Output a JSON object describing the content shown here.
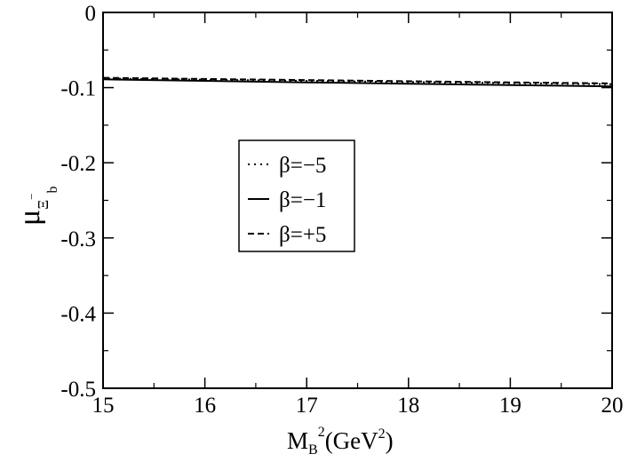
{
  "chart_data": {
    "type": "line",
    "xlim": [
      15,
      20
    ],
    "ylim": [
      -0.5,
      0
    ],
    "x_ticks": [
      15,
      16,
      17,
      18,
      19,
      20
    ],
    "y_ticks": [
      0,
      -0.1,
      -0.2,
      -0.3,
      -0.4,
      -0.5
    ],
    "x_tick_labels": [
      "15",
      "16",
      "17",
      "18",
      "19",
      "20"
    ],
    "y_tick_labels": [
      "0",
      "-0.1",
      "-0.2",
      "-0.3",
      "-0.4",
      "-0.5"
    ],
    "xlabel": {
      "main": "M",
      "sub": "B",
      "sup": "2",
      "rest": "(GeV",
      "sup2": "2",
      "close": ")"
    },
    "ylabel": {
      "main": "μ",
      "sub": "Ξ",
      "sub_sup": "−",
      "sub_sub": "b"
    },
    "legend": {
      "placement": "center-left",
      "entries": [
        "β=−5",
        "β=−1",
        "β=+5"
      ]
    },
    "series": [
      {
        "name": "β=−5",
        "style": "dotted",
        "x": [
          15,
          16,
          17,
          18,
          19,
          20
        ],
        "y": [
          -0.088,
          -0.0895,
          -0.091,
          -0.0925,
          -0.094,
          -0.0955
        ]
      },
      {
        "name": "β=−1",
        "style": "solid",
        "x": [
          15,
          16,
          17,
          18,
          19,
          20
        ],
        "y": [
          -0.089,
          -0.091,
          -0.093,
          -0.0948,
          -0.0966,
          -0.0985
        ]
      },
      {
        "name": "β=+5",
        "style": "dashed",
        "x": [
          15,
          16,
          17,
          18,
          19,
          20
        ],
        "y": [
          -0.087,
          -0.0885,
          -0.09,
          -0.0915,
          -0.093,
          -0.0945
        ]
      }
    ]
  }
}
